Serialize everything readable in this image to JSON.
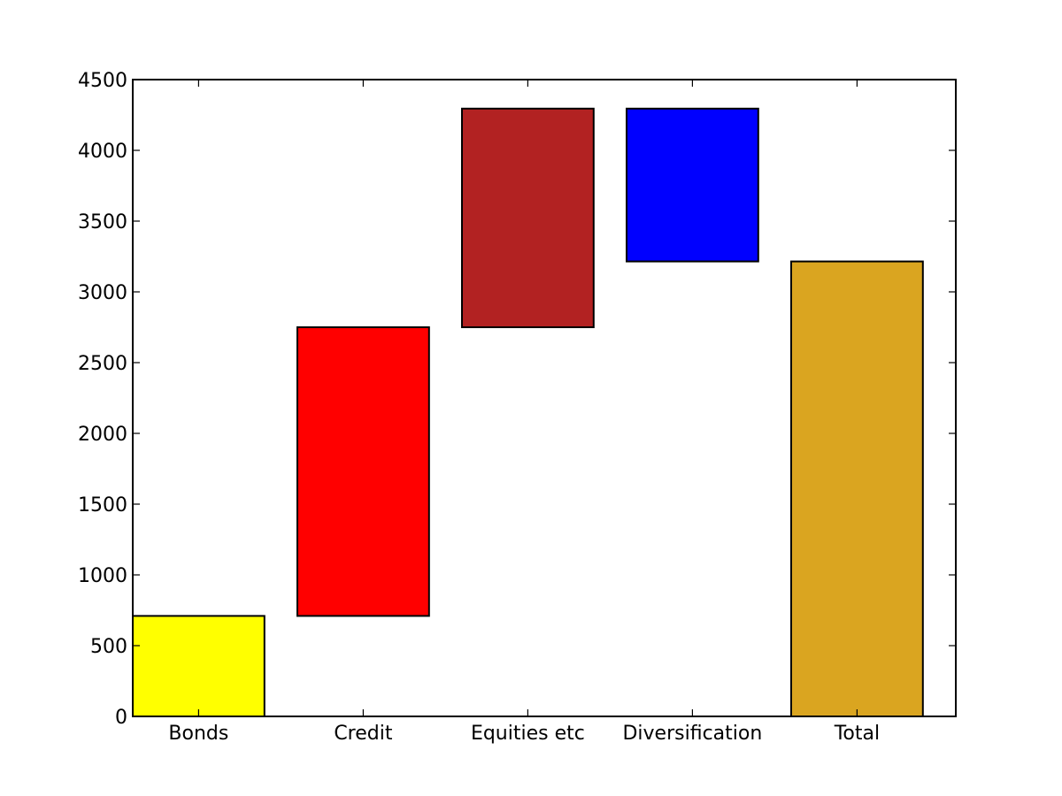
{
  "chart_data": {
    "type": "bar",
    "subtype": "waterfall",
    "categories": [
      "Bonds",
      "Credit",
      "Equities etc",
      "Diversification",
      "Total"
    ],
    "bars": [
      {
        "category": "Bonds",
        "bottom": 0,
        "top": 710,
        "color": "#ffff00"
      },
      {
        "category": "Credit",
        "bottom": 710,
        "top": 2750,
        "color": "#ff0000"
      },
      {
        "category": "Equities etc",
        "bottom": 2750,
        "top": 4295,
        "color": "#b22222"
      },
      {
        "category": "Diversification",
        "bottom": 3215,
        "top": 4295,
        "color": "#0000ff"
      },
      {
        "category": "Total",
        "bottom": 0,
        "top": 3215,
        "color": "#daa520"
      }
    ],
    "ylim": [
      0,
      4500
    ],
    "yticks": [
      0,
      500,
      1000,
      1500,
      2000,
      2500,
      3000,
      3500,
      4000,
      4500
    ],
    "grid": false,
    "legend": "none",
    "title": "",
    "xlabel": "",
    "ylabel": ""
  }
}
